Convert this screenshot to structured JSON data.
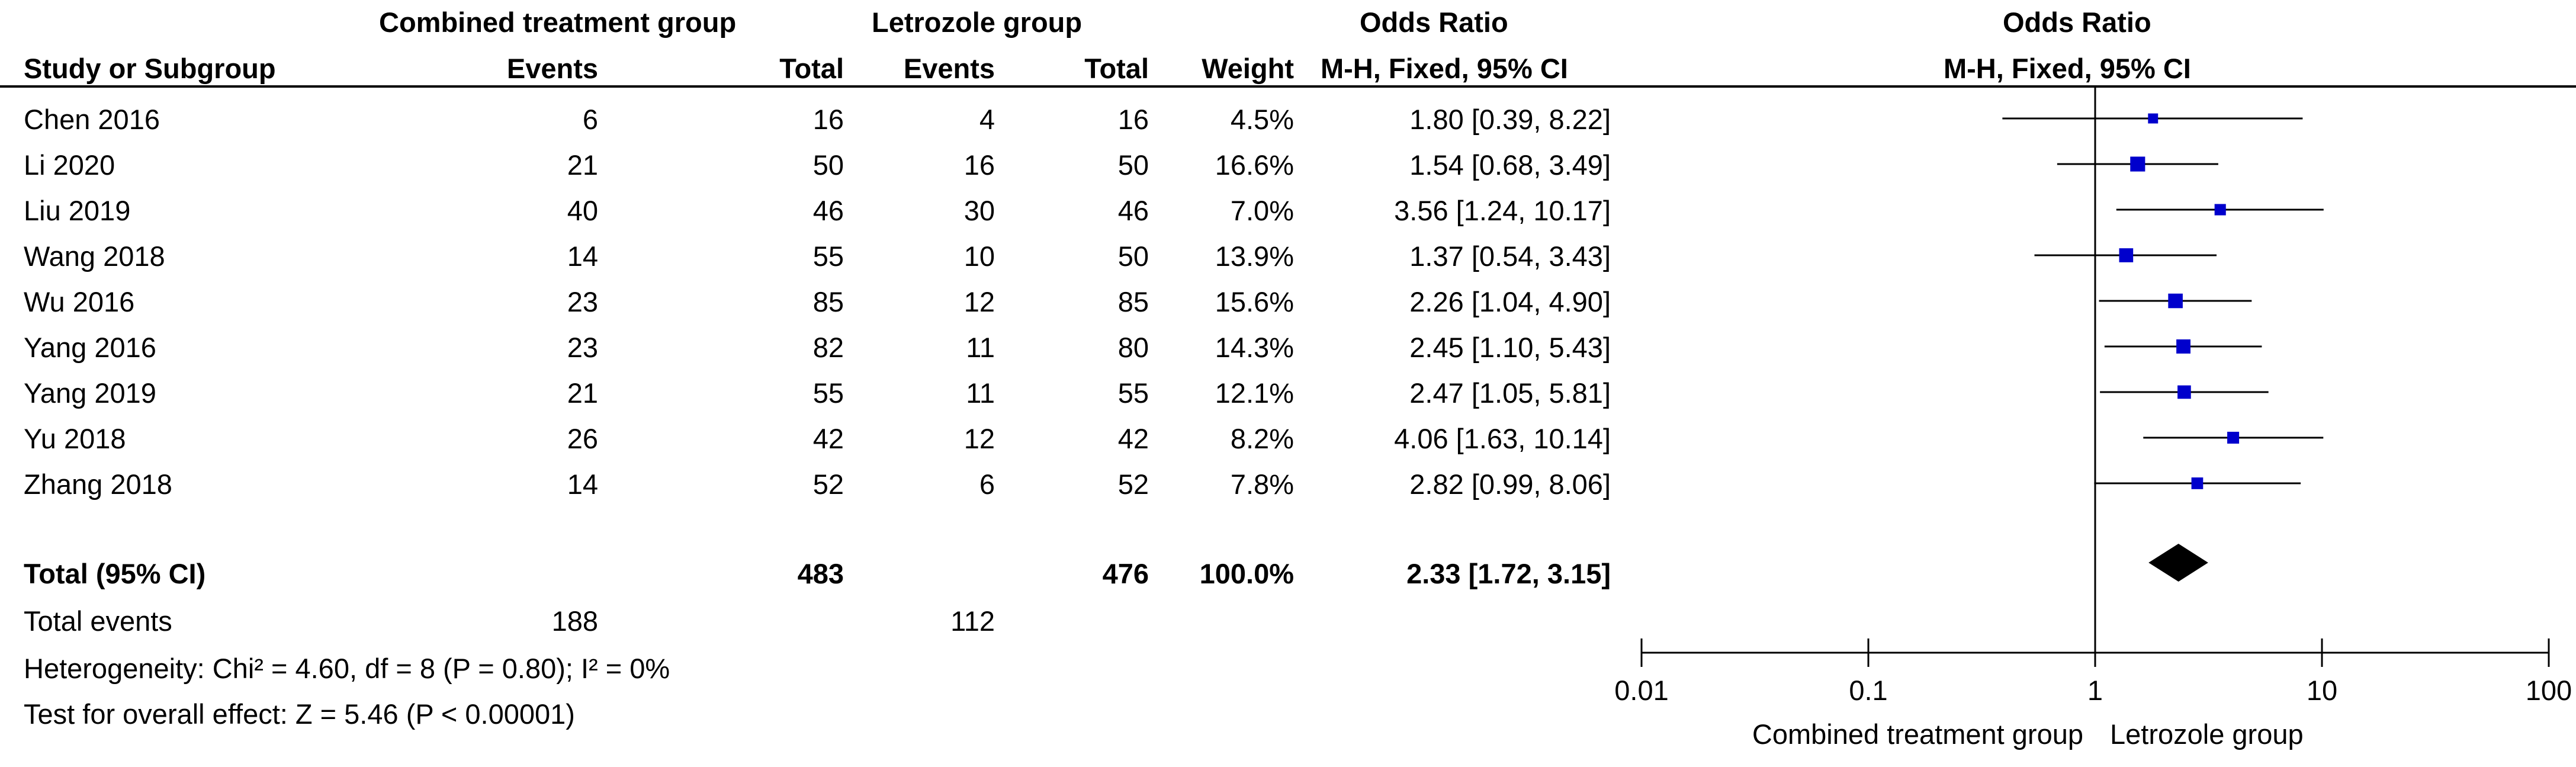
{
  "headers": {
    "group1": "Combined treatment group",
    "group2": "Letrozole group",
    "or_table": "Odds Ratio",
    "or_plot": "Odds Ratio",
    "study": "Study or Subgroup",
    "events1": "Events",
    "total1": "Total",
    "events2": "Events",
    "total2": "Total",
    "weight": "Weight",
    "method_table": "M-H, Fixed, 95% CI",
    "method_plot": "M-H, Fixed, 95% CI"
  },
  "rows": [
    {
      "study": "Chen 2016",
      "e1": "6",
      "n1": "16",
      "e2": "4",
      "n2": "16",
      "weight": "4.5%",
      "ci": "1.80 [0.39, 8.22]"
    },
    {
      "study": "Li 2020",
      "e1": "21",
      "n1": "50",
      "e2": "16",
      "n2": "50",
      "weight": "16.6%",
      "ci": "1.54 [0.68, 3.49]"
    },
    {
      "study": "Liu 2019",
      "e1": "40",
      "n1": "46",
      "e2": "30",
      "n2": "46",
      "weight": "7.0%",
      "ci": "3.56 [1.24, 10.17]"
    },
    {
      "study": "Wang 2018",
      "e1": "14",
      "n1": "55",
      "e2": "10",
      "n2": "50",
      "weight": "13.9%",
      "ci": "1.37 [0.54, 3.43]"
    },
    {
      "study": "Wu 2016",
      "e1": "23",
      "n1": "85",
      "e2": "12",
      "n2": "85",
      "weight": "15.6%",
      "ci": "2.26 [1.04, 4.90]"
    },
    {
      "study": "Yang 2016",
      "e1": "23",
      "n1": "82",
      "e2": "11",
      "n2": "80",
      "weight": "14.3%",
      "ci": "2.45 [1.10, 5.43]"
    },
    {
      "study": "Yang 2019",
      "e1": "21",
      "n1": "55",
      "e2": "11",
      "n2": "55",
      "weight": "12.1%",
      "ci": "2.47 [1.05, 5.81]"
    },
    {
      "study": "Yu 2018",
      "e1": "26",
      "n1": "42",
      "e2": "12",
      "n2": "42",
      "weight": "8.2%",
      "ci": "4.06 [1.63, 10.14]"
    },
    {
      "study": "Zhang 2018",
      "e1": "14",
      "n1": "52",
      "e2": "6",
      "n2": "52",
      "weight": "7.8%",
      "ci": "2.82 [0.99, 8.06]"
    }
  ],
  "total": {
    "label": "Total (95% CI)",
    "n1": "483",
    "n2": "476",
    "weight": "100.0%",
    "ci": "2.33 [1.72, 3.15]"
  },
  "total_events": {
    "label": "Total events",
    "e1": "188",
    "e2": "112"
  },
  "heterogeneity": "Heterogeneity: Chi² = 4.60, df = 8 (P = 0.80); I² = 0%",
  "overall_effect": "Test for overall effect: Z = 5.46 (P < 0.00001)",
  "chart_data": {
    "type": "forest",
    "scale": "log",
    "xlim": [
      0.01,
      100
    ],
    "ticks": [
      {
        "v": 0.01,
        "label": "0.01"
      },
      {
        "v": 0.1,
        "label": "0.1"
      },
      {
        "v": 1,
        "label": "1"
      },
      {
        "v": 10,
        "label": "10"
      },
      {
        "v": 100,
        "label": "100"
      }
    ],
    "favours_left": "Combined treatment group",
    "favours_right": "Letrozole group",
    "studies": [
      {
        "study": "Chen 2016",
        "or": 1.8,
        "lo": 0.39,
        "hi": 8.22,
        "weight": 4.5
      },
      {
        "study": "Li 2020",
        "or": 1.54,
        "lo": 0.68,
        "hi": 3.49,
        "weight": 16.6
      },
      {
        "study": "Liu 2019",
        "or": 3.56,
        "lo": 1.24,
        "hi": 10.17,
        "weight": 7.0
      },
      {
        "study": "Wang 2018",
        "or": 1.37,
        "lo": 0.54,
        "hi": 3.43,
        "weight": 13.9
      },
      {
        "study": "Wu 2016",
        "or": 2.26,
        "lo": 1.04,
        "hi": 4.9,
        "weight": 15.6
      },
      {
        "study": "Yang 2016",
        "or": 2.45,
        "lo": 1.1,
        "hi": 5.43,
        "weight": 14.3
      },
      {
        "study": "Yang 2019",
        "or": 2.47,
        "lo": 1.05,
        "hi": 5.81,
        "weight": 12.1
      },
      {
        "study": "Yu 2018",
        "or": 4.06,
        "lo": 1.63,
        "hi": 10.14,
        "weight": 8.2
      },
      {
        "study": "Zhang 2018",
        "or": 2.82,
        "lo": 0.99,
        "hi": 8.06,
        "weight": 7.8
      }
    ],
    "pooled": {
      "or": 2.33,
      "lo": 1.72,
      "hi": 3.15
    },
    "colors": {
      "marker": "#0000cc",
      "line": "#000000",
      "diamond": "#000000"
    }
  }
}
